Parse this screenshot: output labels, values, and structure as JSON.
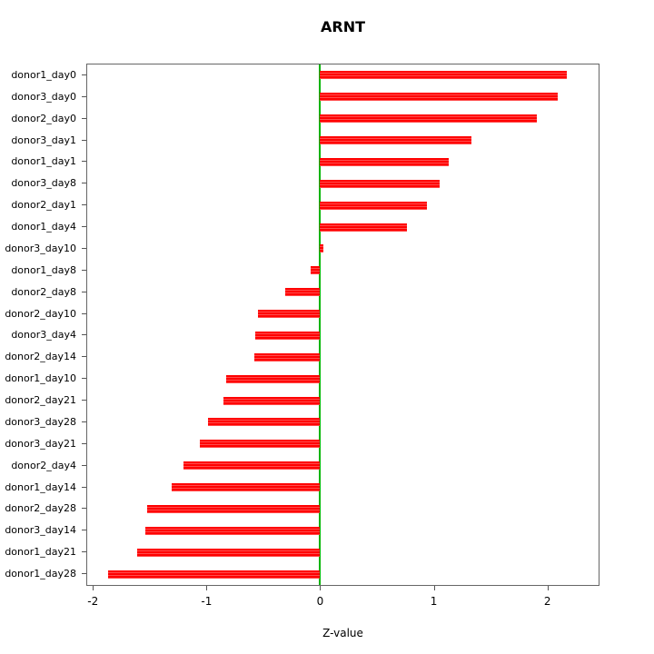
{
  "chart_data": {
    "type": "bar",
    "orientation": "horizontal",
    "title": "ARNT",
    "xlabel": "Z-value",
    "ylabel": "",
    "xlim": [
      -2.05,
      2.45
    ],
    "xticks": [
      -2,
      -1,
      0,
      1,
      2
    ],
    "grid": false,
    "legend": null,
    "bar_color": "#ff0000",
    "zero_line_color": "#00b400",
    "categories": [
      "donor1_day0",
      "donor3_day0",
      "donor2_day0",
      "donor3_day1",
      "donor1_day1",
      "donor3_day8",
      "donor2_day1",
      "donor1_day4",
      "donor3_day10",
      "donor1_day8",
      "donor2_day8",
      "donor2_day10",
      "donor3_day4",
      "donor2_day14",
      "donor1_day10",
      "donor2_day21",
      "donor3_day28",
      "donor3_day21",
      "donor2_day4",
      "donor1_day14",
      "donor2_day28",
      "donor3_day14",
      "donor1_day21",
      "donor1_day28"
    ],
    "values": [
      2.17,
      2.09,
      1.91,
      1.33,
      1.13,
      1.05,
      0.94,
      0.76,
      0.03,
      -0.08,
      -0.31,
      -0.55,
      -0.57,
      -0.58,
      -0.83,
      -0.85,
      -0.99,
      -1.06,
      -1.2,
      -1.31,
      -1.52,
      -1.54,
      -1.61,
      -1.87
    ]
  }
}
